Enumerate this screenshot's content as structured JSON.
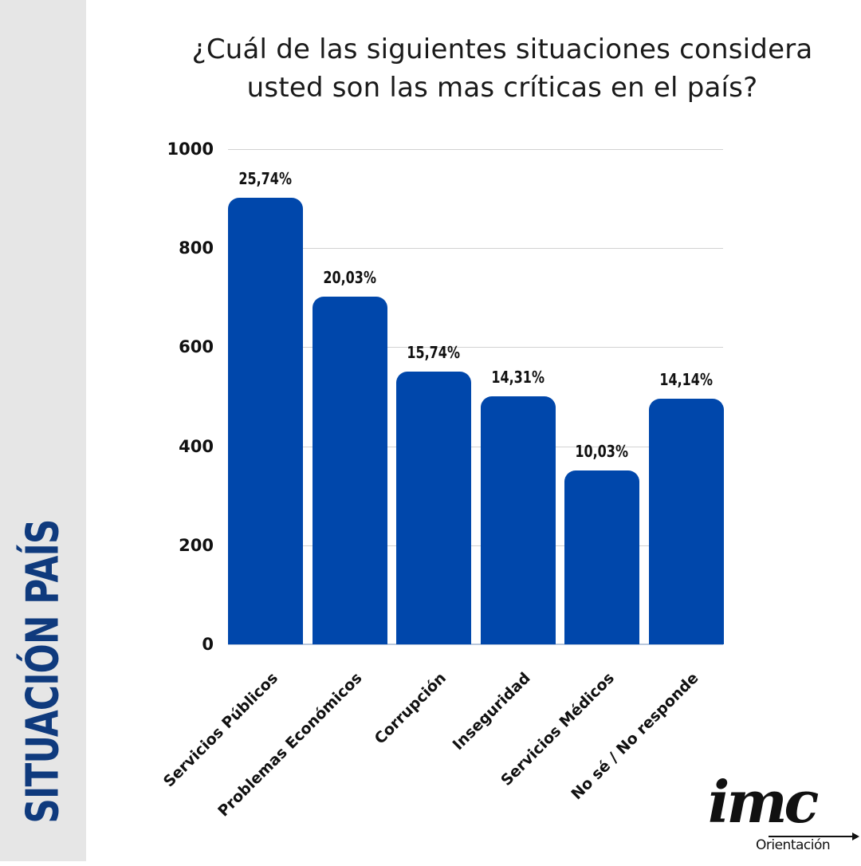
{
  "sidebar": {
    "title": "SITUACIÓN PAÍS",
    "bg_color": "#e6e6e6",
    "text_color": "#0f3a7d"
  },
  "header": {
    "title_line1": "¿Cuál de las siguientes situaciones considera",
    "title_line2": "usted son las mas críticas en el país?"
  },
  "logo": {
    "main": "imc",
    "sub": "Orientación"
  },
  "colors": {
    "bar": "#0047ab",
    "grid": "#d2d2d2"
  },
  "chart_data": {
    "type": "bar",
    "title": "¿Cuál de las siguientes situaciones considera usted son las mas críticas en el país?",
    "xlabel": "",
    "ylabel": "",
    "ylim": [
      0,
      1000
    ],
    "yticks": [
      0,
      200,
      400,
      600,
      800,
      1000
    ],
    "grid": true,
    "legend": null,
    "categories": [
      "Servicios Públicos",
      "Problemas Económicos",
      "Corrupción",
      "Inseguridad",
      "Servicios Médicos",
      "No sé / No responde"
    ],
    "values": [
      902,
      702,
      551,
      501,
      351,
      496
    ],
    "data_labels": [
      "25,74%",
      "20,03%",
      "15,74%",
      "14,31%",
      "10,03%",
      "14,14%"
    ]
  },
  "axis": {
    "yticks": [
      "0",
      "200",
      "400",
      "600",
      "800",
      "1000"
    ]
  }
}
